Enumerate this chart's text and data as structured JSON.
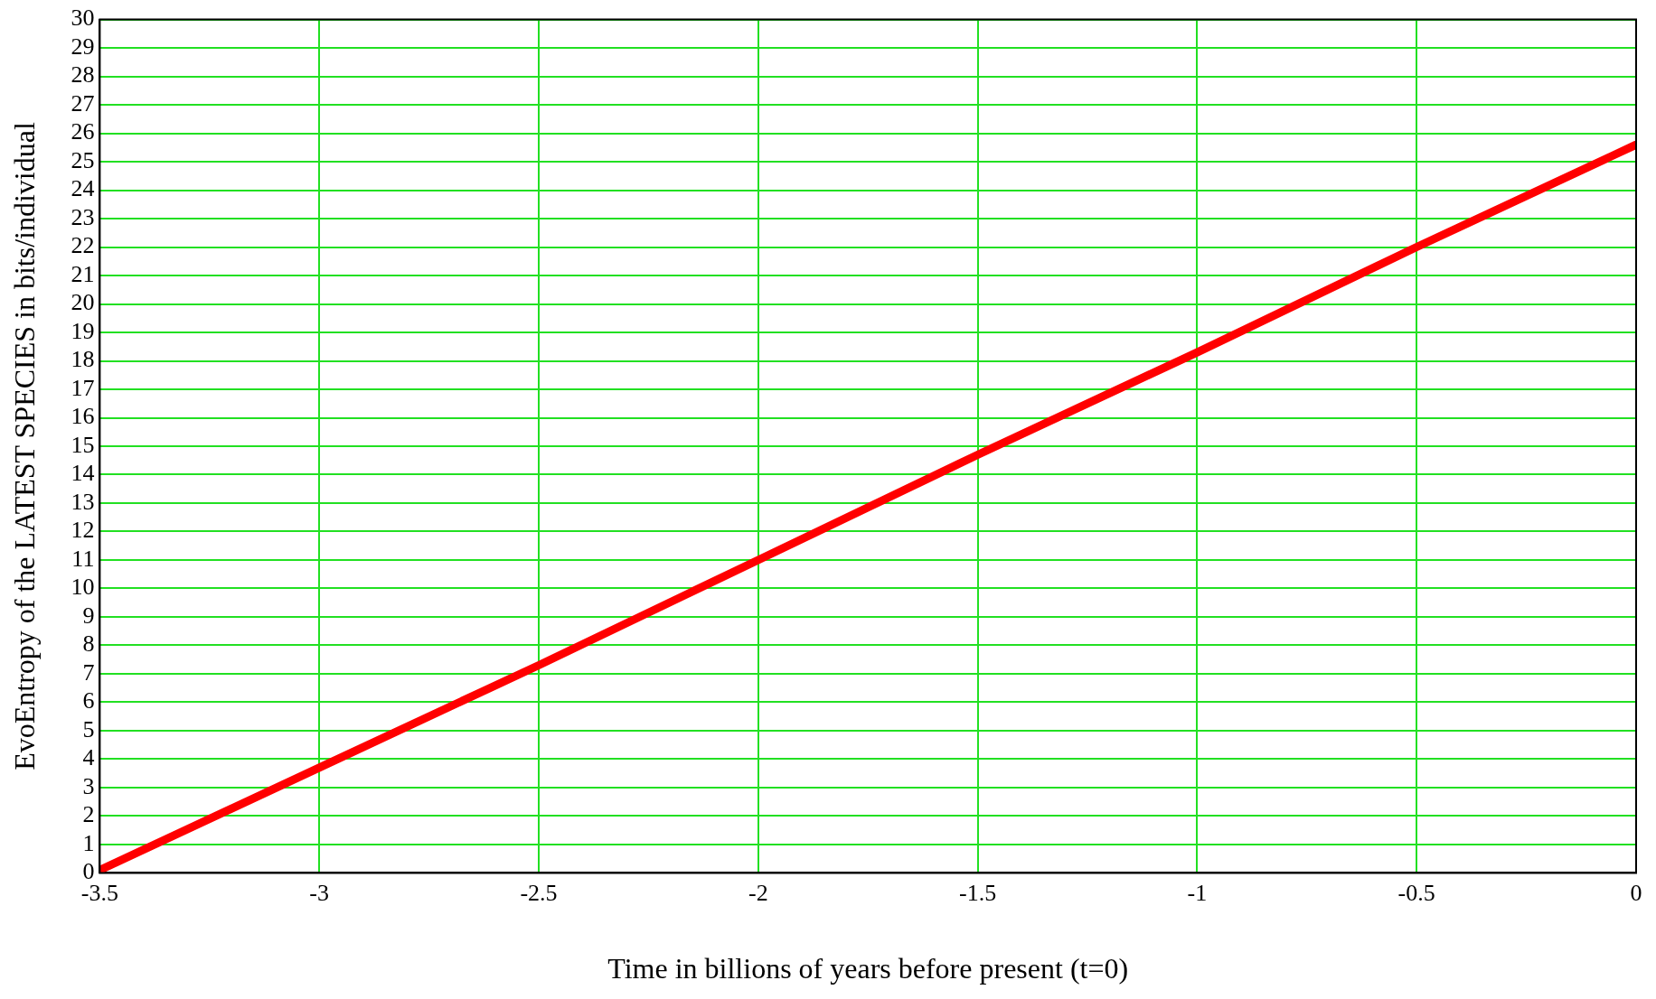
{
  "chart_data": {
    "type": "line",
    "xlabel": "Time in billions of years before present (t=0)",
    "ylabel": "EvoEntropy of the LATEST SPECIES in bits/individual",
    "x": [
      -3.5,
      -3,
      -2.5,
      -2,
      -1.5,
      -1,
      -0.5,
      0
    ],
    "series": [
      {
        "color": "#ff0000",
        "values": [
          0.1,
          3.7,
          7.3,
          11,
          14.7,
          18.3,
          22,
          25.6
        ]
      }
    ],
    "xlim": [
      -3.5,
      0
    ],
    "xticks": [
      -3.5,
      -3,
      -2.5,
      -2,
      -1.5,
      -1,
      -0.5,
      0
    ],
    "ylim": [
      0,
      30
    ],
    "yticks": [
      0,
      1,
      2,
      3,
      4,
      5,
      6,
      7,
      8,
      9,
      10,
      11,
      12,
      13,
      14,
      15,
      16,
      17,
      18,
      19,
      20,
      21,
      22,
      23,
      24,
      25,
      26,
      27,
      28,
      29,
      30
    ],
    "grid": true,
    "legend": false,
    "marker": "none",
    "line_style": "solid"
  }
}
